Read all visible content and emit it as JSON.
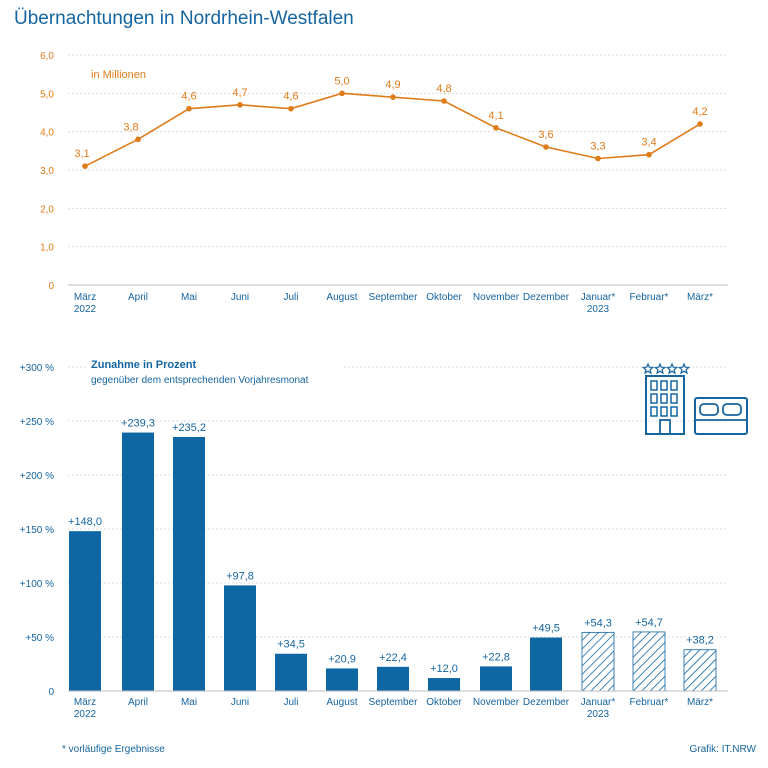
{
  "title": "Übernachtungen in Nordrhein-Westfalen",
  "footnote": "*  vorläufige Ergebnisse",
  "credit": "Grafik: IT.NRW",
  "colors": {
    "line": "#e07b1a",
    "bar": "#0e66a3",
    "text": "#1565a0",
    "grid": "#dddddd"
  },
  "icons": [
    "hotel-building-icon",
    "star-icon",
    "bed-icon"
  ],
  "chart_data": [
    {
      "type": "line",
      "unit_label": "in Millionen",
      "ylim": [
        0,
        6
      ],
      "yticks": [
        "0",
        "1,0",
        "2,0",
        "3,0",
        "4,0",
        "5,0",
        "6,0"
      ],
      "grid": true,
      "categories": [
        [
          "März",
          "2022"
        ],
        [
          "April"
        ],
        [
          "Mai"
        ],
        [
          "Juni"
        ],
        [
          "Juli"
        ],
        [
          "August"
        ],
        [
          "September"
        ],
        [
          "Oktober"
        ],
        [
          "November"
        ],
        [
          "Dezember"
        ],
        [
          "Januar*",
          "2023"
        ],
        [
          "Februar*"
        ],
        [
          "März*"
        ]
      ],
      "values": [
        3.1,
        3.8,
        4.6,
        4.7,
        4.6,
        5.0,
        4.9,
        4.8,
        4.1,
        3.6,
        3.3,
        3.4,
        4.2
      ],
      "labels": [
        "3,1",
        "3,8",
        "4,6",
        "4,7",
        "4,6",
        "5,0",
        "4,9",
        "4,8",
        "4,1",
        "3,6",
        "3,3",
        "3,4",
        "4,2"
      ]
    },
    {
      "type": "bar",
      "title": "Zunahme in Prozent",
      "subtitle": "gegenüber dem entsprechenden Vorjahresmonat",
      "ylim": [
        0,
        300
      ],
      "yticks": [
        "0",
        "+50 %",
        "+100 %",
        "+150 %",
        "+200 %",
        "+250 %",
        "+300 %"
      ],
      "grid": true,
      "categories": [
        [
          "März",
          "2022"
        ],
        [
          "April"
        ],
        [
          "Mai"
        ],
        [
          "Juni"
        ],
        [
          "Juli"
        ],
        [
          "August"
        ],
        [
          "September"
        ],
        [
          "Oktober"
        ],
        [
          "November"
        ],
        [
          "Dezember"
        ],
        [
          "Januar*",
          "2023"
        ],
        [
          "Februar*"
        ],
        [
          "März*"
        ]
      ],
      "values": [
        148.0,
        239.3,
        235.2,
        97.8,
        34.5,
        20.9,
        22.4,
        12.0,
        22.8,
        49.5,
        54.3,
        54.7,
        38.2
      ],
      "labels": [
        "+148,0",
        "+239,3",
        "+235,2",
        "+97,8",
        "+34,5",
        "+20,9",
        "+22,4",
        "+12,0",
        "+22,8",
        "+49,5",
        "+54,3",
        "+54,7",
        "+38,2"
      ],
      "provisional": [
        false,
        false,
        false,
        false,
        false,
        false,
        false,
        false,
        false,
        false,
        true,
        true,
        true
      ]
    }
  ]
}
